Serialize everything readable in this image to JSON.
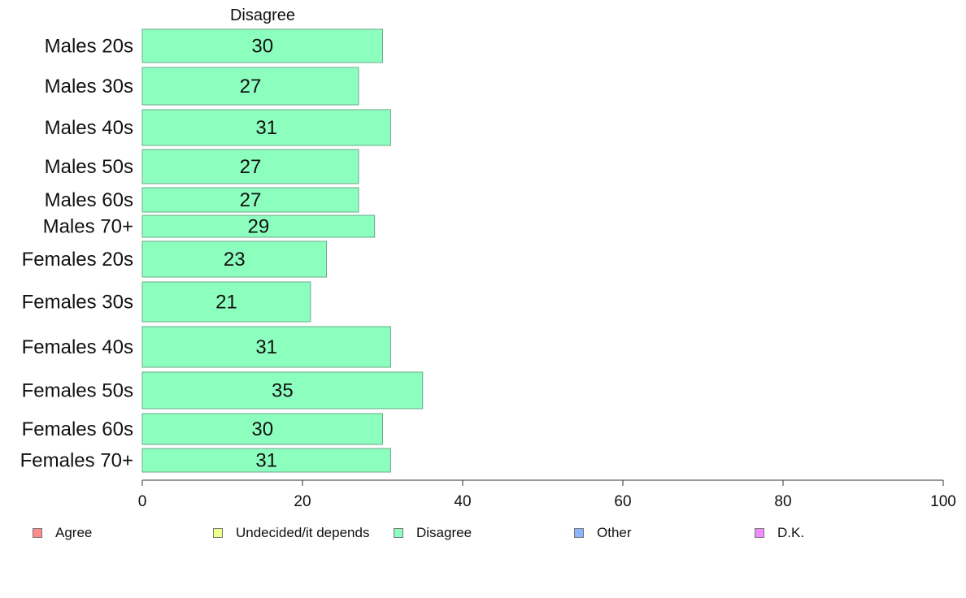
{
  "chart_data": {
    "type": "bar",
    "orientation": "horizontal",
    "title": "Disagree",
    "categories": [
      "Males 20s",
      "Males 30s",
      "Males 40s",
      "Males 50s",
      "Males 60s",
      "Males 70+",
      "Females 20s",
      "Females 30s",
      "Females 40s",
      "Females 50s",
      "Females 60s",
      "Females 70+"
    ],
    "series": [
      {
        "name": "Disagree",
        "values": [
          30,
          27,
          31,
          27,
          27,
          29,
          23,
          21,
          31,
          35,
          30,
          31
        ],
        "color": "#8cffbf"
      }
    ],
    "value_labels": [
      "30",
      "27",
      "31",
      "27",
      "27",
      "29",
      "23",
      "21",
      "31",
      "35",
      "30",
      "31"
    ],
    "xlim": [
      0,
      100
    ],
    "x_ticks": [
      0,
      20,
      40,
      60,
      80,
      100
    ],
    "x_tick_labels": [
      "0",
      "20",
      "40",
      "60",
      "80",
      "100"
    ],
    "grid": false,
    "legend_placement": "bottom",
    "legend": [
      {
        "label": "Agree",
        "color": "#ff8c8c"
      },
      {
        "label": "Undecided/it depends",
        "color": "#efff8c"
      },
      {
        "label": "Disagree",
        "color": "#8cffbf"
      },
      {
        "label": "Other",
        "color": "#8cb4ff"
      },
      {
        "label": "D.K.",
        "color": "#ef8cff"
      }
    ]
  }
}
